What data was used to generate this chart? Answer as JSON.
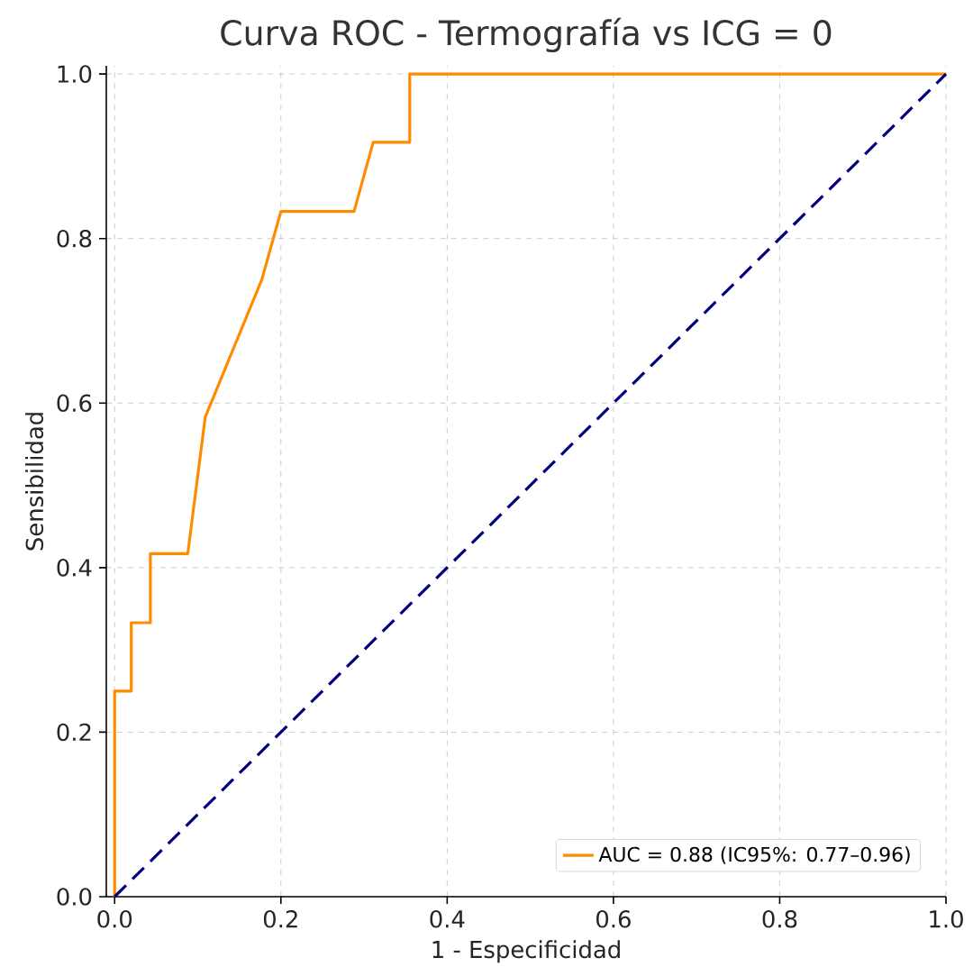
{
  "chart_data": {
    "type": "line",
    "title": "Curva ROC - Termografía vs ICG = 0",
    "xlabel": "1 - Especificidad",
    "ylabel": "Sensibilidad",
    "series": [
      {
        "name": "AUC = 0.88 (IC95%: 0.77–0.96)",
        "color": "#ff8c00",
        "line_style": "solid",
        "x": [
          0.0,
          0.0,
          0.02,
          0.02,
          0.043,
          0.043,
          0.088,
          0.109,
          0.177,
          0.2,
          0.288,
          0.311,
          0.355,
          0.355,
          1.0
        ],
        "values": [
          0.0,
          0.25,
          0.25,
          0.333,
          0.333,
          0.417,
          0.417,
          0.583,
          0.75,
          0.833,
          0.833,
          0.917,
          0.917,
          1.0,
          1.0
        ]
      },
      {
        "color": "#000080",
        "line_style": "dashed",
        "x": [
          0.0,
          1.0
        ],
        "values": [
          0.0,
          1.0
        ]
      }
    ],
    "xlim": [
      -0.01,
      1.0
    ],
    "ylim": [
      0.0,
      1.01
    ],
    "xticks": [
      {
        "value": 0.0,
        "label": "0.0"
      },
      0.2,
      0.4,
      0.6,
      0.8,
      {
        "value": 1.0,
        "label": "1.0"
      }
    ],
    "yticks": [
      {
        "value": 0.0,
        "label": "0.0"
      },
      0.2,
      0.4,
      0.6,
      0.8,
      {
        "value": 1.0,
        "label": "1.0"
      }
    ],
    "grid": true,
    "legend": "bottom right",
    "marker": "none"
  }
}
